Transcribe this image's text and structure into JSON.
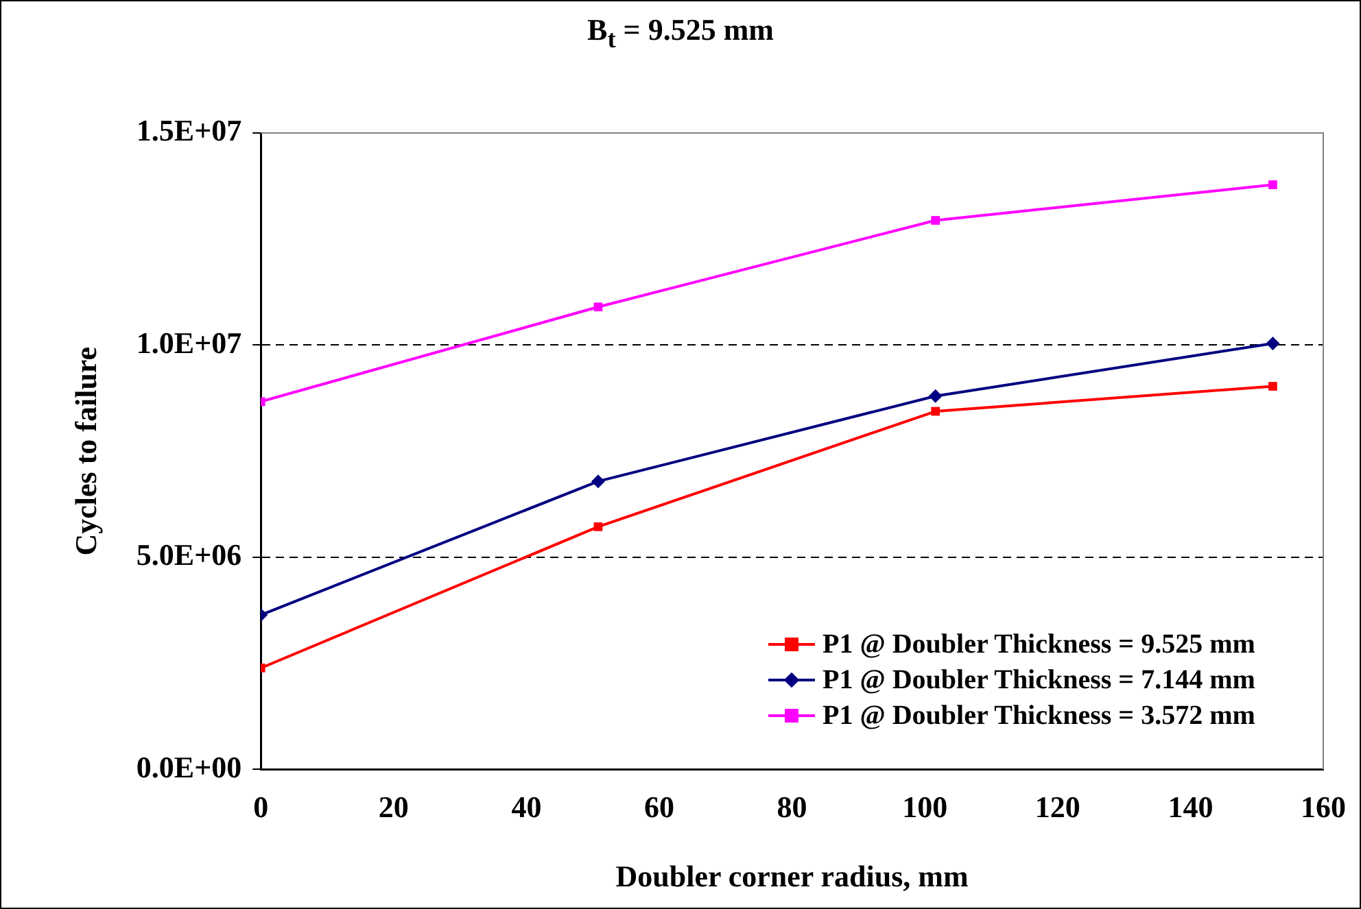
{
  "chart_data": {
    "type": "line",
    "title": "B$_{t}$ = 9.525 mm",
    "xlabel": "Doubler corner radius, mm",
    "ylabel": "Cycles to failure",
    "x": [
      0,
      50.8,
      101.6,
      152.4
    ],
    "xlim": [
      0,
      160
    ],
    "xticks": [
      0,
      20,
      40,
      60,
      80,
      100,
      120,
      140,
      160
    ],
    "ylim": [
      0,
      15000000
    ],
    "yticks": [
      {
        "value": 0,
        "label": "0.0E+00"
      },
      {
        "value": 5000000,
        "label": "5.0E+06"
      },
      {
        "value": 10000000,
        "label": "1.0E+07"
      },
      {
        "value": 15000000,
        "label": "1.5E+07"
      }
    ],
    "grid": "y",
    "legend": "bottom right",
    "line_style": "solid",
    "series": [
      {
        "name": "P1 @ Doubler Thickness = 9.525 mm",
        "color": "#ff0000",
        "marker": "square",
        "values": [
          2390000,
          5720000,
          8440000,
          9030000
        ]
      },
      {
        "name": "P1 @ Doubler Thickness = 7.144 mm",
        "color": "#000080",
        "marker": "diamond",
        "values": [
          3640000,
          6790000,
          8800000,
          10040000
        ]
      },
      {
        "name": "P1 @ Doubler Thickness = 3.572 mm",
        "color": "#ff00ff",
        "marker": "square",
        "values": [
          8670000,
          10900000,
          12940000,
          13780000
        ]
      }
    ]
  }
}
